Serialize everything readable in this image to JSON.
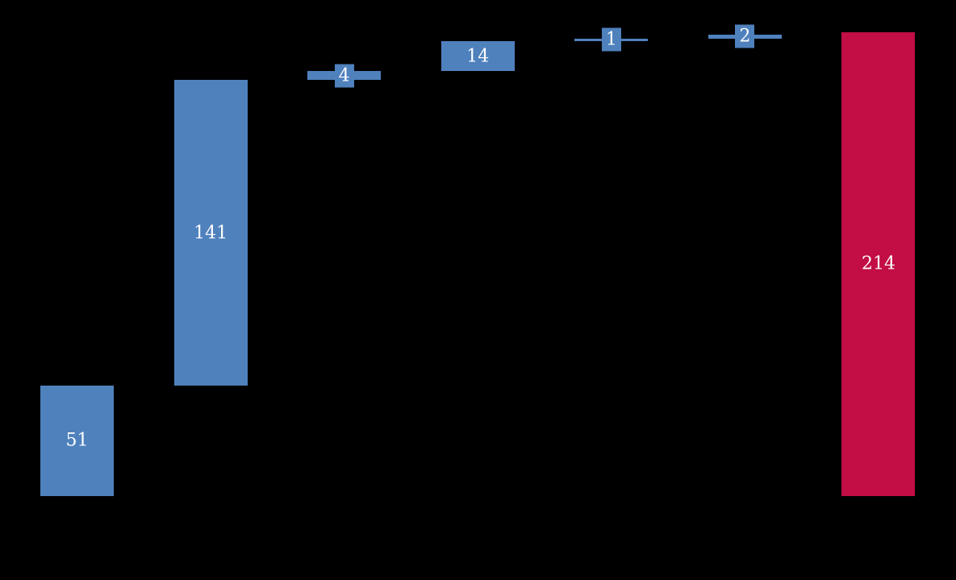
{
  "chart_data": {
    "type": "waterfall",
    "title": "",
    "xlabel": "",
    "ylabel": "",
    "axes_visible": false,
    "gridlines": false,
    "legend": false,
    "background_color": "#000000",
    "label_text_color": "#ffffff",
    "colors": {
      "increase": "#4F81BD",
      "total": "#C20E44"
    },
    "points": [
      {
        "label": "51",
        "value": 51,
        "role": "increase"
      },
      {
        "label": "141",
        "value": 141,
        "role": "increase"
      },
      {
        "label": "4",
        "value": 4,
        "role": "increase"
      },
      {
        "label": "14",
        "value": 14,
        "role": "increase"
      },
      {
        "label": "1",
        "value": 1,
        "role": "increase"
      },
      {
        "label": "2",
        "value": 2,
        "role": "increase"
      },
      {
        "label": "214",
        "value": 214,
        "role": "total"
      }
    ],
    "ylim": [
      0,
      216
    ]
  }
}
